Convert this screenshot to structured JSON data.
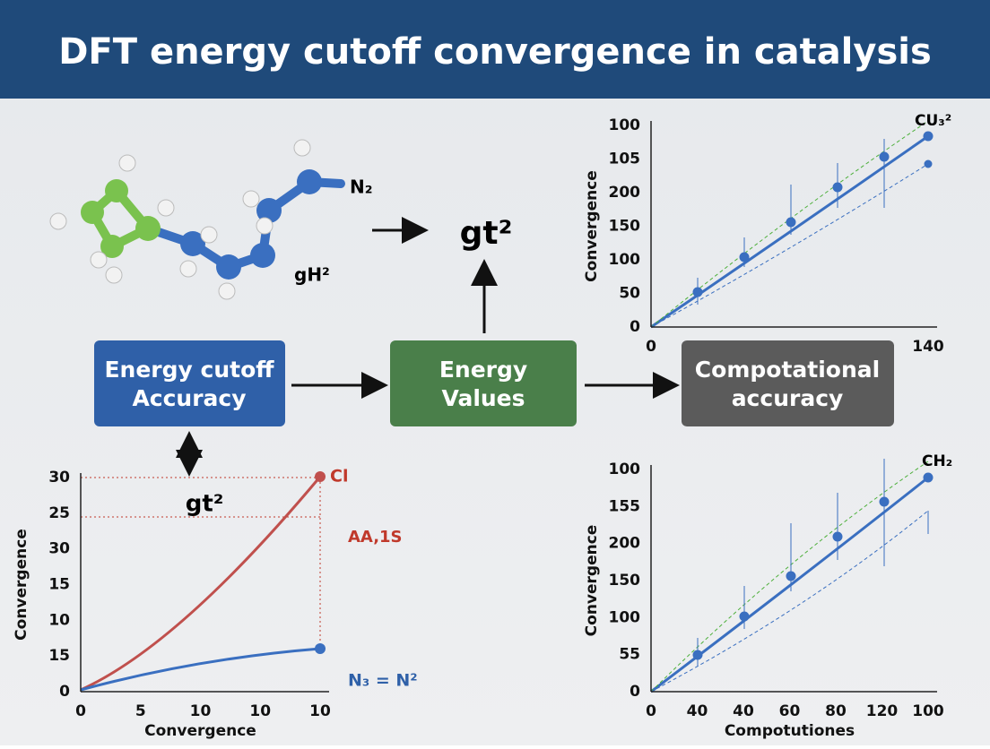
{
  "title": "DFT energy cutoff convergence in catalysis",
  "molecule": {
    "labels": [
      "N₂",
      "gH²"
    ]
  },
  "flow": {
    "arrow_label": "gt²",
    "boxes": [
      {
        "lines": [
          "Energy cutoff",
          "Accuracy"
        ]
      },
      {
        "lines": [
          "Energy",
          "Values"
        ]
      },
      {
        "lines": [
          "Compotational",
          "accuracy"
        ]
      }
    ]
  },
  "charts": {
    "top_right": {
      "y_label": "Convergence",
      "yticks": [
        "100",
        "105",
        "200",
        "150",
        "100",
        "50",
        "0"
      ],
      "xticks": [
        "0",
        "140"
      ],
      "series_label": "CU₃²"
    },
    "bottom_left": {
      "y_label": "Convergence",
      "x_label": "Convergence",
      "yticks": [
        "30",
        "25",
        "30",
        "15",
        "10",
        "15",
        "0"
      ],
      "xticks": [
        "0",
        "5",
        "10",
        "10",
        "10"
      ],
      "annotations": [
        "gt²",
        "Cl",
        "AA,1S",
        "N₃ = N²"
      ]
    },
    "bottom_right": {
      "y_label": "Convergence",
      "x_label": "Compotutiones",
      "yticks": [
        "100",
        "155",
        "200",
        "150",
        "100",
        "55",
        "0"
      ],
      "xticks": [
        "0",
        "40",
        "40",
        "60",
        "80",
        "120",
        "100"
      ],
      "series_label": "CH₂"
    }
  }
}
